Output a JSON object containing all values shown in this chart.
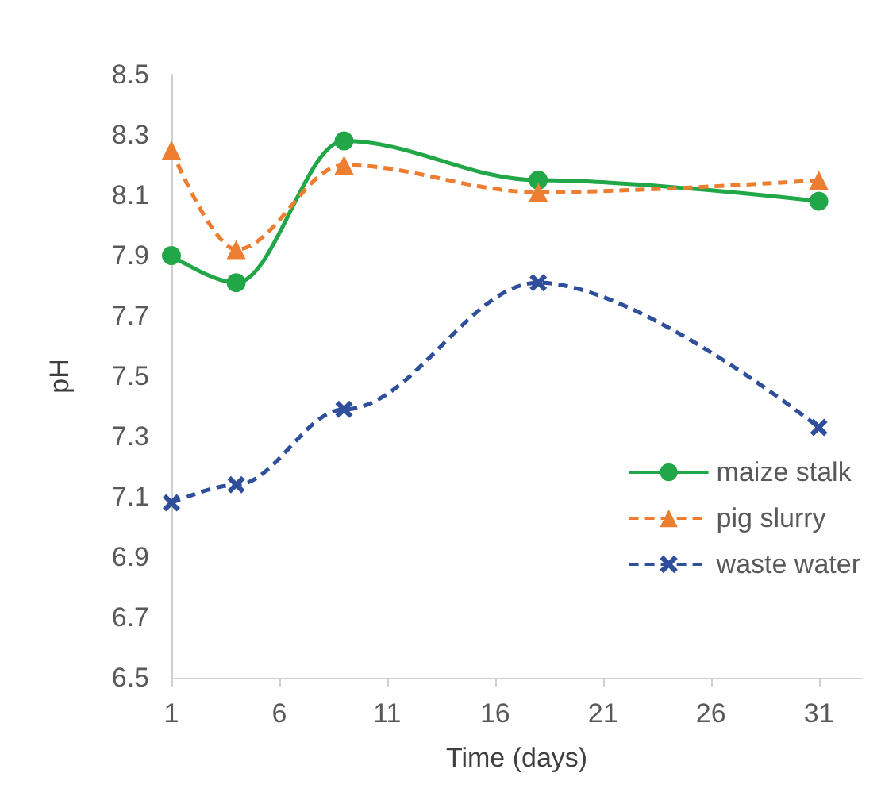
{
  "chart_data": {
    "type": "line",
    "xlabel": "Time (days)",
    "ylabel": "pH",
    "x": [
      1,
      4,
      9,
      18,
      31
    ],
    "series": [
      {
        "name": "maize stalk",
        "color": "#21a648",
        "marker": "circle",
        "line_style": "solid",
        "values": [
          7.9,
          7.81,
          8.28,
          8.15,
          8.08
        ]
      },
      {
        "name": "pig slurry",
        "color": "#ed7d31",
        "marker": "triangle",
        "line_style": "dashed",
        "values": [
          8.25,
          7.92,
          8.2,
          8.11,
          8.15
        ]
      },
      {
        "name": "waste water",
        "color": "#2f4f9a",
        "marker": "cross",
        "line_style": "dashed",
        "values": [
          7.08,
          7.14,
          7.39,
          7.81,
          7.33
        ]
      }
    ],
    "xlim": [
      1,
      33
    ],
    "xticks": [
      1,
      6,
      11,
      16,
      21,
      26,
      31
    ],
    "ylim": [
      6.5,
      8.5
    ],
    "yticks": [
      6.5,
      6.7,
      6.9,
      7.1,
      7.3,
      7.5,
      7.7,
      7.9,
      8.1,
      8.3,
      8.5
    ],
    "grid": false,
    "legend": "bottom right"
  }
}
